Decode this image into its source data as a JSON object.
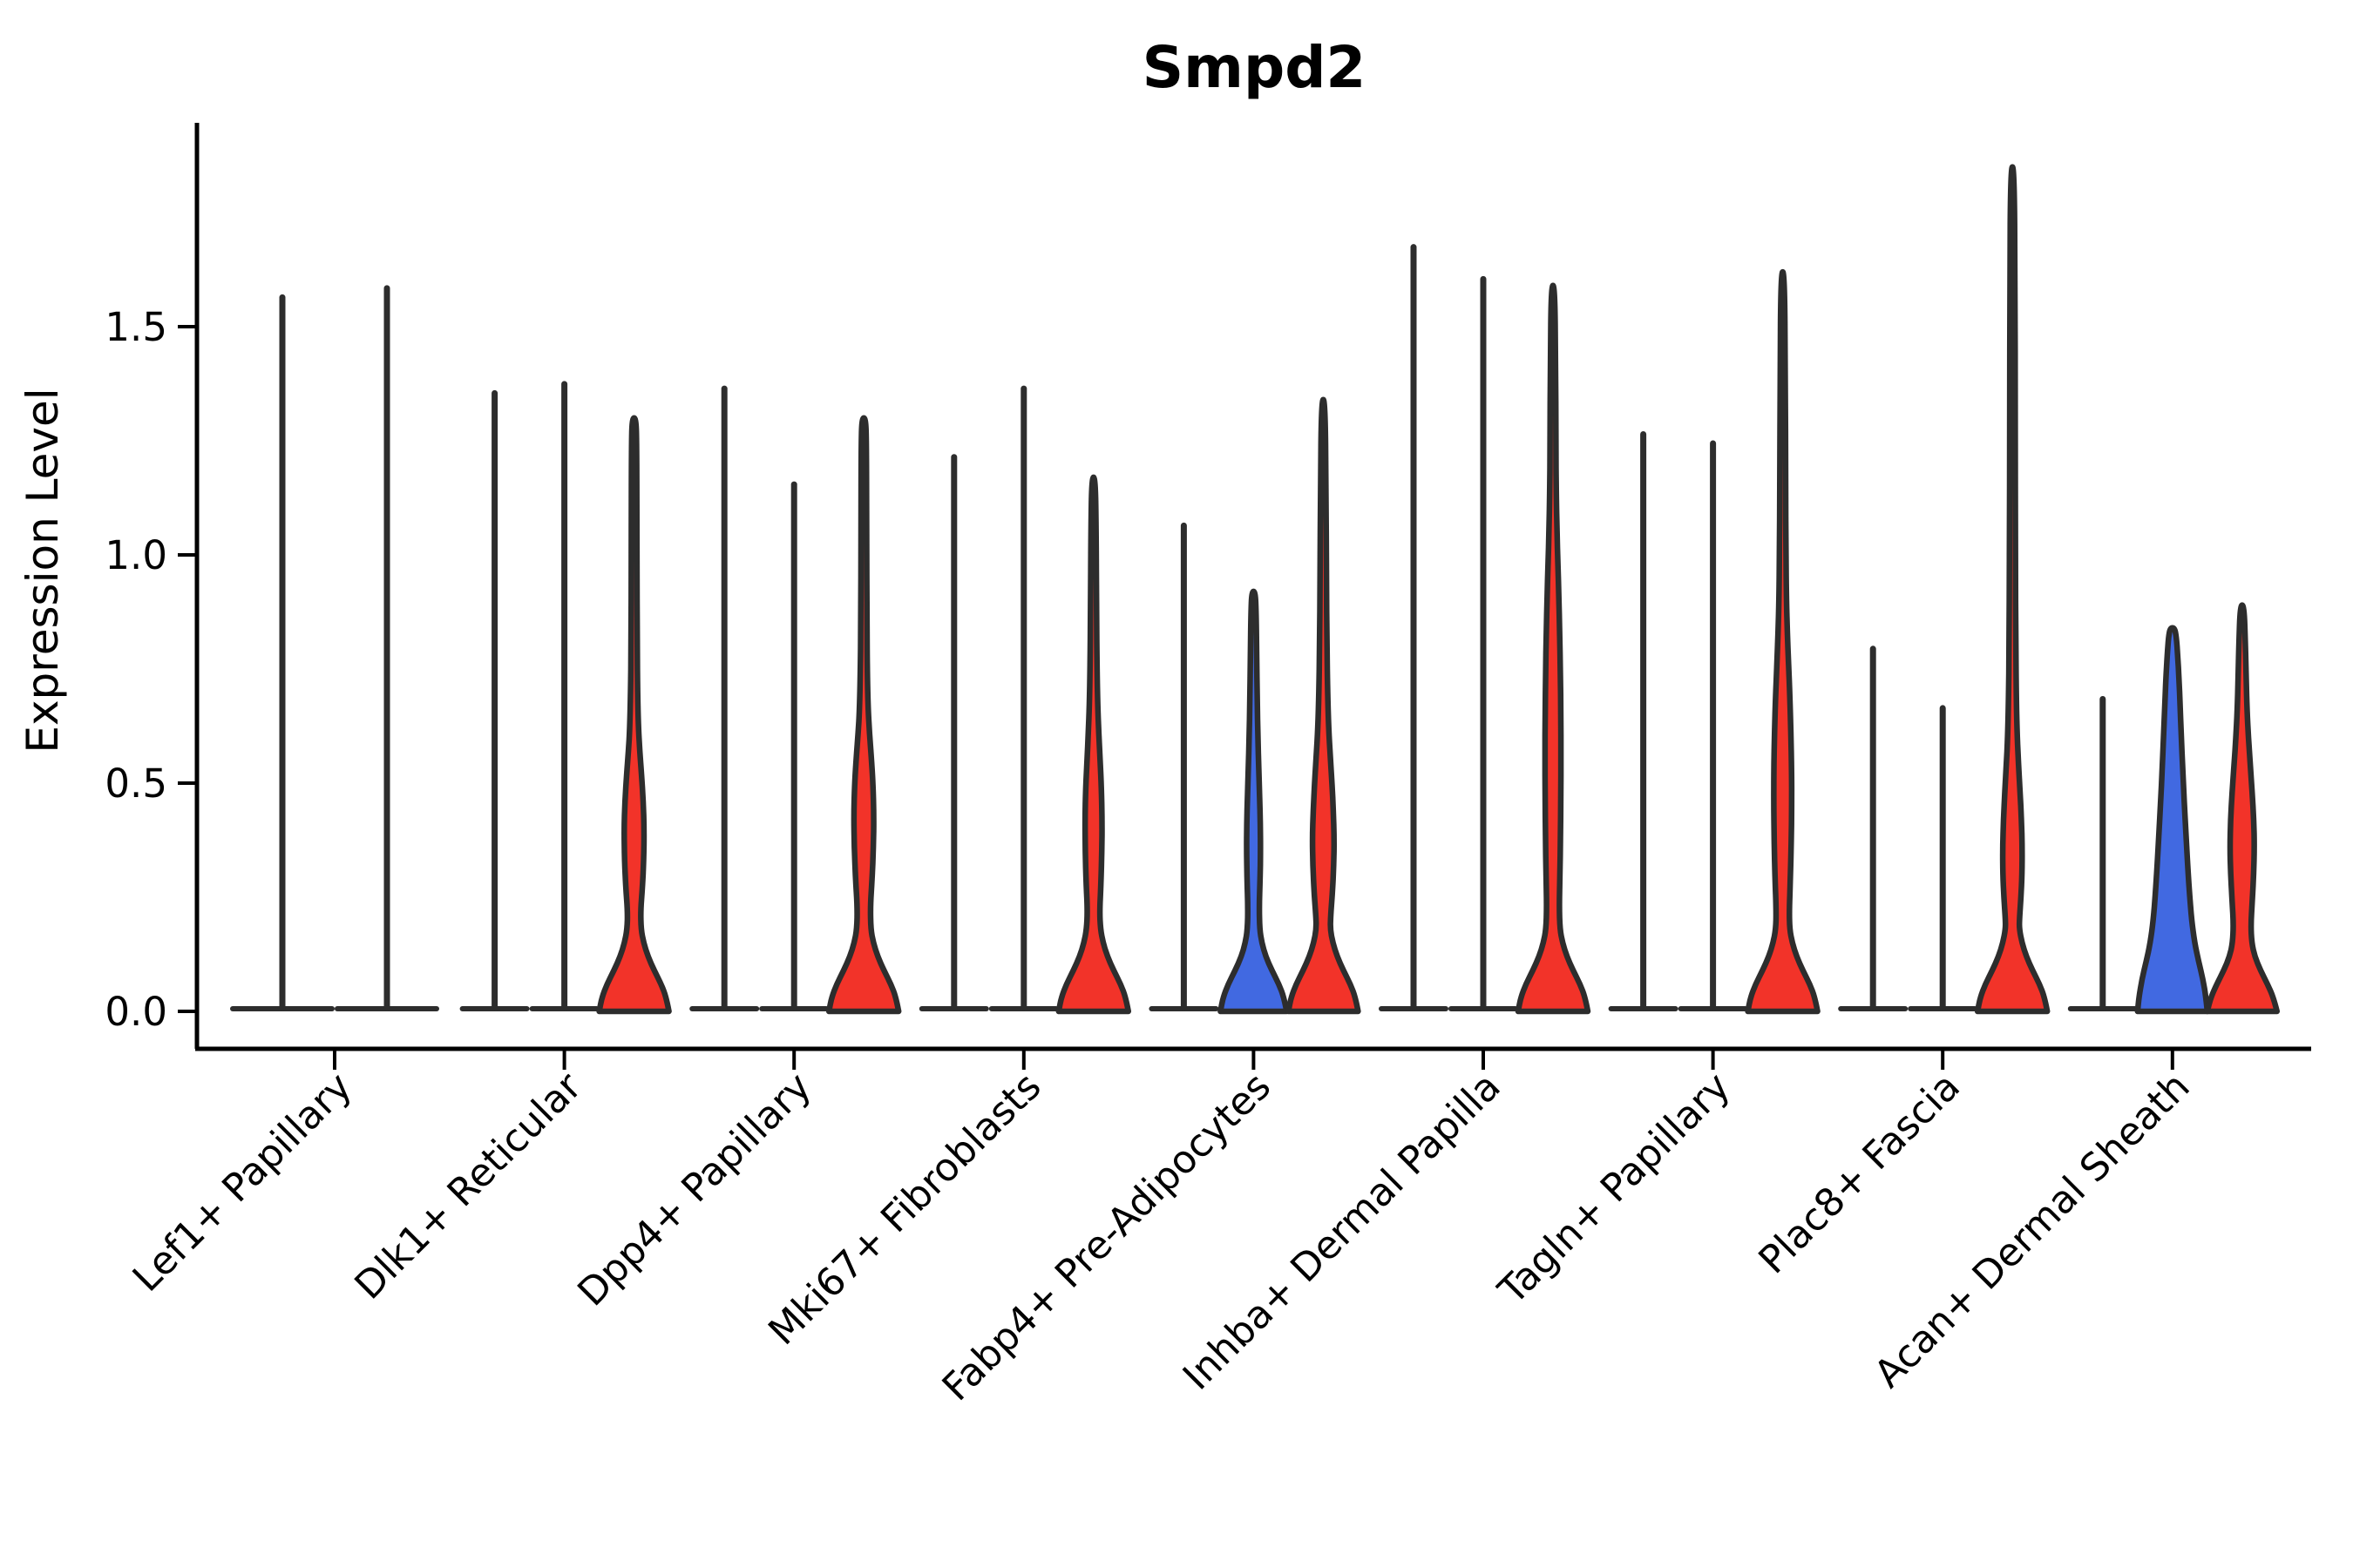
{
  "title": "Smpd2",
  "y_axis": {
    "label": "Expression Level",
    "tick_labels": [
      "0.0",
      "0.5",
      "1.0",
      "1.5"
    ]
  },
  "colors": {
    "red": "#f23329",
    "blue": "#4169e1",
    "outline": "#2d2d2d",
    "axis": "#000000"
  },
  "chart_data": {
    "type": "violin",
    "title": "Smpd2",
    "xlabel": "",
    "ylabel": "Expression Level",
    "ylim": [
      -0.08,
      1.95
    ],
    "yticks": [
      0,
      0.5,
      1.0,
      1.5
    ],
    "grid": false,
    "legend": "none",
    "categories": [
      "Lef1+ Papillary",
      "Dlk1+ Reticular",
      "Dpp4+ Papillary",
      "Mki67+ Fibroblasts",
      "Fabp4+ Pre-Adipocytes",
      "Inhba+ Dermal Papilla",
      "Tagln+ Papillary",
      "Plac8+ Fascia",
      "Acan+ Dermal Sheath"
    ],
    "series": [
      {
        "category": "Lef1+ Papillary",
        "violins": [
          {
            "fill": "none",
            "max": 1.57,
            "profile": null
          },
          {
            "fill": "none",
            "max": 1.59,
            "profile": null
          }
        ]
      },
      {
        "category": "Dlk1+ Reticular",
        "violins": [
          {
            "fill": "none",
            "max": 1.36,
            "profile": null
          },
          {
            "fill": "none",
            "max": 1.38,
            "profile": null
          },
          {
            "fill": "red",
            "max": 1.3,
            "profile": [
              [
                0,
                40
              ],
              [
                0.03,
                37
              ],
              [
                0.06,
                31
              ],
              [
                0.09,
                23
              ],
              [
                0.12,
                16
              ],
              [
                0.15,
                11
              ],
              [
                0.18,
                8
              ],
              [
                0.22,
                7.5
              ],
              [
                0.27,
                9.5
              ],
              [
                0.33,
                11
              ],
              [
                0.4,
                11.5
              ],
              [
                0.46,
                10.5
              ],
              [
                0.52,
                8.5
              ],
              [
                0.57,
                6.5
              ],
              [
                0.62,
                5
              ],
              [
                0.7,
                4
              ],
              [
                0.8,
                3.5
              ],
              [
                1.0,
                3.2
              ],
              [
                1.25,
                3
              ],
              [
                1.3,
                2
              ]
            ]
          }
        ]
      },
      {
        "category": "Dpp4+ Papillary",
        "violins": [
          {
            "fill": "none",
            "max": 1.37,
            "profile": null
          },
          {
            "fill": "none",
            "max": 1.16,
            "profile": null
          },
          {
            "fill": "red",
            "max": 1.3,
            "profile": [
              [
                0,
                40
              ],
              [
                0.03,
                37
              ],
              [
                0.06,
                31
              ],
              [
                0.09,
                23
              ],
              [
                0.12,
                16
              ],
              [
                0.15,
                11
              ],
              [
                0.18,
                8
              ],
              [
                0.23,
                7.5
              ],
              [
                0.29,
                9.5
              ],
              [
                0.36,
                11
              ],
              [
                0.43,
                11.5
              ],
              [
                0.5,
                10.5
              ],
              [
                0.56,
                8.5
              ],
              [
                0.61,
                6.5
              ],
              [
                0.66,
                5
              ],
              [
                0.74,
                4
              ],
              [
                0.85,
                3.5
              ],
              [
                1.05,
                3.2
              ],
              [
                1.25,
                3
              ],
              [
                1.3,
                2
              ]
            ]
          }
        ]
      },
      {
        "category": "Mki67+ Fibroblasts",
        "violins": [
          {
            "fill": "none",
            "max": 1.22,
            "profile": null
          },
          {
            "fill": "none",
            "max": 1.37,
            "profile": null
          },
          {
            "fill": "red",
            "max": 1.17,
            "profile": [
              [
                0,
                40
              ],
              [
                0.03,
                37
              ],
              [
                0.06,
                31
              ],
              [
                0.09,
                23
              ],
              [
                0.12,
                16
              ],
              [
                0.15,
                11
              ],
              [
                0.18,
                8
              ],
              [
                0.22,
                7
              ],
              [
                0.28,
                8.5
              ],
              [
                0.35,
                9.5
              ],
              [
                0.42,
                9.8
              ],
              [
                0.49,
                9
              ],
              [
                0.55,
                7.5
              ],
              [
                0.61,
                6
              ],
              [
                0.67,
                4.8
              ],
              [
                0.75,
                4
              ],
              [
                0.88,
                3.4
              ],
              [
                1.05,
                3
              ],
              [
                1.17,
                2
              ]
            ]
          }
        ]
      },
      {
        "category": "Fabp4+ Pre-Adipocytes",
        "violins": [
          {
            "fill": "none",
            "max": 1.07,
            "profile": null
          },
          {
            "fill": "blue",
            "max": 0.92,
            "profile": [
              [
                0,
                38
              ],
              [
                0.03,
                35
              ],
              [
                0.06,
                29
              ],
              [
                0.09,
                21
              ],
              [
                0.12,
                14
              ],
              [
                0.15,
                9.5
              ],
              [
                0.18,
                7
              ],
              [
                0.23,
                6.5
              ],
              [
                0.29,
                7.5
              ],
              [
                0.35,
                8
              ],
              [
                0.41,
                7.8
              ],
              [
                0.47,
                7
              ],
              [
                0.53,
                6
              ],
              [
                0.6,
                5
              ],
              [
                0.68,
                4.2
              ],
              [
                0.78,
                3.6
              ],
              [
                0.87,
                3
              ],
              [
                0.92,
                2
              ]
            ]
          },
          {
            "fill": "red",
            "max": 1.34,
            "profile": [
              [
                0,
                40
              ],
              [
                0.03,
                37
              ],
              [
                0.06,
                31
              ],
              [
                0.09,
                23
              ],
              [
                0.12,
                16
              ],
              [
                0.15,
                11
              ],
              [
                0.18,
                8
              ],
              [
                0.21,
                8.5
              ],
              [
                0.26,
                10.5
              ],
              [
                0.32,
                12
              ],
              [
                0.38,
                12.5
              ],
              [
                0.44,
                11.5
              ],
              [
                0.5,
                10
              ],
              [
                0.56,
                8
              ],
              [
                0.62,
                6.2
              ],
              [
                0.7,
                5
              ],
              [
                0.8,
                4.2
              ],
              [
                0.95,
                3.6
              ],
              [
                1.15,
                3.2
              ],
              [
                1.34,
                2
              ]
            ]
          }
        ]
      },
      {
        "category": "Inhba+ Dermal Papilla",
        "violins": [
          {
            "fill": "none",
            "max": 1.68,
            "profile": null
          },
          {
            "fill": "none",
            "max": 1.61,
            "profile": null
          },
          {
            "fill": "red",
            "max": 1.59,
            "profile": [
              [
                0,
                40
              ],
              [
                0.03,
                37
              ],
              [
                0.06,
                31
              ],
              [
                0.09,
                23
              ],
              [
                0.12,
                16
              ],
              [
                0.15,
                11
              ],
              [
                0.18,
                8
              ],
              [
                0.23,
                7.2
              ],
              [
                0.3,
                8
              ],
              [
                0.38,
                8.6
              ],
              [
                0.47,
                9
              ],
              [
                0.56,
                9.2
              ],
              [
                0.65,
                9
              ],
              [
                0.74,
                8.5
              ],
              [
                0.83,
                7.7
              ],
              [
                0.91,
                6.7
              ],
              [
                0.98,
                5.6
              ],
              [
                1.05,
                4.6
              ],
              [
                1.13,
                3.8
              ],
              [
                1.25,
                3.3
              ],
              [
                1.42,
                3
              ],
              [
                1.59,
                2
              ]
            ]
          }
        ]
      },
      {
        "category": "Tagln+ Papillary",
        "violins": [
          {
            "fill": "none",
            "max": 1.27,
            "profile": null
          },
          {
            "fill": "none",
            "max": 1.25,
            "profile": null
          },
          {
            "fill": "red",
            "max": 1.62,
            "profile": [
              [
                0,
                40
              ],
              [
                0.03,
                37
              ],
              [
                0.06,
                31
              ],
              [
                0.09,
                23
              ],
              [
                0.12,
                16
              ],
              [
                0.15,
                11
              ],
              [
                0.18,
                8
              ],
              [
                0.22,
                7.5
              ],
              [
                0.29,
                8.8
              ],
              [
                0.37,
                9.8
              ],
              [
                0.45,
                10.3
              ],
              [
                0.53,
                10.2
              ],
              [
                0.61,
                9.4
              ],
              [
                0.69,
                8.2
              ],
              [
                0.76,
                6.7
              ],
              [
                0.83,
                5.3
              ],
              [
                0.9,
                4.3
              ],
              [
                1.0,
                3.7
              ],
              [
                1.15,
                3.3
              ],
              [
                1.4,
                3
              ],
              [
                1.62,
                2
              ]
            ]
          }
        ]
      },
      {
        "category": "Plac8+ Fascia",
        "violins": [
          {
            "fill": "none",
            "max": 0.8,
            "profile": null
          },
          {
            "fill": "none",
            "max": 0.67,
            "profile": null
          },
          {
            "fill": "red",
            "max": 1.85,
            "profile": [
              [
                0,
                40
              ],
              [
                0.03,
                37
              ],
              [
                0.06,
                31
              ],
              [
                0.09,
                23
              ],
              [
                0.12,
                16
              ],
              [
                0.15,
                11
              ],
              [
                0.18,
                8
              ],
              [
                0.2,
                8
              ],
              [
                0.25,
                9.8
              ],
              [
                0.3,
                11
              ],
              [
                0.36,
                11.2
              ],
              [
                0.42,
                10.3
              ],
              [
                0.48,
                8.8
              ],
              [
                0.54,
                7
              ],
              [
                0.6,
                5.5
              ],
              [
                0.68,
                4.5
              ],
              [
                0.8,
                3.8
              ],
              [
                1.0,
                3.4
              ],
              [
                1.3,
                3.1
              ],
              [
                1.6,
                3
              ],
              [
                1.85,
                2
              ]
            ]
          }
        ]
      },
      {
        "category": "Acan+ Dermal Sheath",
        "violins": [
          {
            "fill": "none",
            "max": 0.69,
            "profile": null
          },
          {
            "fill": "blue",
            "max": 0.84,
            "profile": [
              [
                0,
                40
              ],
              [
                0.03,
                38.5
              ],
              [
                0.07,
                35
              ],
              [
                0.11,
                30
              ],
              [
                0.15,
                25.5
              ],
              [
                0.2,
                22
              ],
              [
                0.26,
                19.5
              ],
              [
                0.32,
                17.5
              ],
              [
                0.39,
                15.5
              ],
              [
                0.46,
                13.5
              ],
              [
                0.53,
                11.8
              ],
              [
                0.6,
                10.2
              ],
              [
                0.67,
                8.8
              ],
              [
                0.73,
                7.5
              ],
              [
                0.78,
                6
              ],
              [
                0.82,
                4.5
              ],
              [
                0.84,
                2.5
              ]
            ]
          },
          {
            "fill": "red",
            "max": 0.89,
            "profile": [
              [
                0,
                40
              ],
              [
                0.03,
                36
              ],
              [
                0.06,
                29
              ],
              [
                0.09,
                21
              ],
              [
                0.12,
                14.5
              ],
              [
                0.15,
                11
              ],
              [
                0.19,
                10
              ],
              [
                0.24,
                11.5
              ],
              [
                0.3,
                13.2
              ],
              [
                0.36,
                14
              ],
              [
                0.42,
                13.3
              ],
              [
                0.48,
                11.5
              ],
              [
                0.54,
                9.3
              ],
              [
                0.6,
                7.2
              ],
              [
                0.66,
                5.6
              ],
              [
                0.73,
                4.6
              ],
              [
                0.8,
                3.8
              ],
              [
                0.89,
                2.2
              ]
            ]
          }
        ]
      }
    ]
  }
}
